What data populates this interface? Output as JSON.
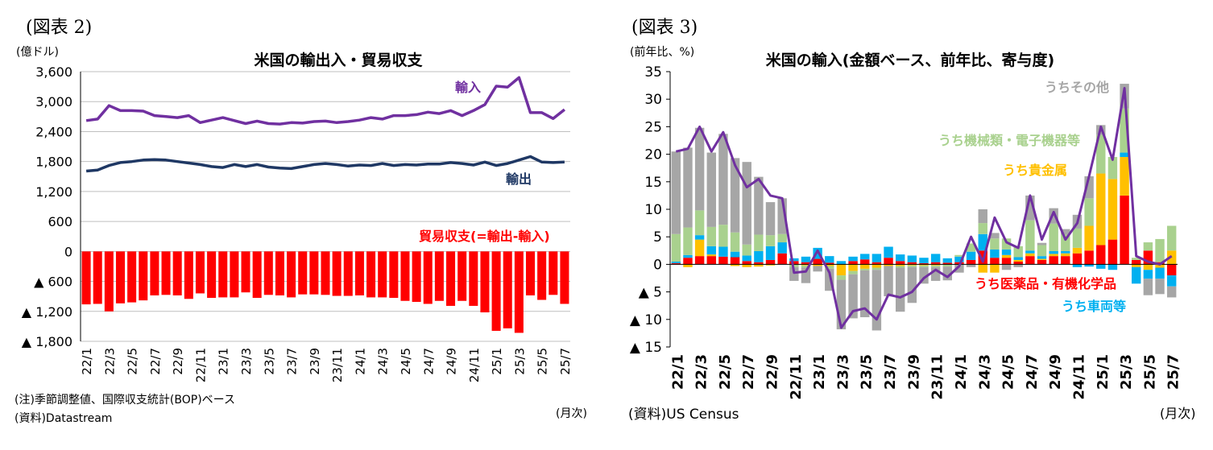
{
  "chart_data": [
    {
      "type": "bar+line",
      "figure_label": "(図表 2)",
      "title": "米国の輸出入・貿易収支",
      "ylabel": "(億ドル)",
      "xlabel_unit": "(月次)",
      "ylim": [
        -1800,
        3600
      ],
      "yticks": [
        {
          "value": 3600,
          "label": "3,600"
        },
        {
          "value": 3000,
          "label": "3,000"
        },
        {
          "value": 2400,
          "label": "2,400"
        },
        {
          "value": 1800,
          "label": "1,800"
        },
        {
          "value": 1200,
          "label": "1,200"
        },
        {
          "value": 600,
          "label": "600"
        },
        {
          "value": 0,
          "label": "0"
        },
        {
          "value": -600,
          "label": "▲ 600"
        },
        {
          "value": -1200,
          "label": "▲ 1,200"
        },
        {
          "value": -1800,
          "label": "▲ 1,800"
        }
      ],
      "grid": true,
      "categories": [
        "22/1",
        "22/2",
        "22/3",
        "22/4",
        "22/5",
        "22/6",
        "22/7",
        "22/8",
        "22/9",
        "22/10",
        "22/11",
        "22/12",
        "23/1",
        "23/2",
        "23/3",
        "23/4",
        "23/5",
        "23/6",
        "23/7",
        "23/8",
        "23/9",
        "23/10",
        "23/11",
        "23/12",
        "24/1",
        "24/2",
        "24/3",
        "24/4",
        "24/5",
        "24/6",
        "24/7",
        "24/8",
        "24/9",
        "24/10",
        "24/11",
        "24/12",
        "25/1",
        "25/2",
        "25/3",
        "25/4",
        "25/5",
        "25/6",
        "25/7"
      ],
      "tick_labels": [
        "22/1",
        "22/3",
        "22/5",
        "22/7",
        "22/9",
        "22/11",
        "23/1",
        "23/3",
        "23/5",
        "23/7",
        "23/9",
        "23/11",
        "24/1",
        "24/3",
        "24/5",
        "24/7",
        "24/9",
        "24/11",
        "25/1",
        "25/3",
        "25/5",
        "25/7"
      ],
      "series": [
        {
          "name": "輸入",
          "kind": "line",
          "color": "#7030a0",
          "values": [
            2620,
            2650,
            2920,
            2820,
            2820,
            2810,
            2720,
            2700,
            2680,
            2720,
            2580,
            2630,
            2680,
            2620,
            2560,
            2610,
            2560,
            2550,
            2580,
            2570,
            2600,
            2610,
            2580,
            2600,
            2630,
            2680,
            2650,
            2720,
            2720,
            2740,
            2790,
            2760,
            2820,
            2720,
            2820,
            2940,
            3310,
            3290,
            3480,
            2780,
            2780,
            2660,
            2840
          ]
        },
        {
          "name": "輸出",
          "kind": "line",
          "color": "#1f3864",
          "values": [
            1610,
            1630,
            1720,
            1780,
            1800,
            1830,
            1840,
            1830,
            1800,
            1770,
            1740,
            1700,
            1680,
            1740,
            1700,
            1740,
            1690,
            1670,
            1660,
            1700,
            1740,
            1760,
            1740,
            1710,
            1730,
            1720,
            1760,
            1720,
            1740,
            1730,
            1750,
            1750,
            1780,
            1760,
            1730,
            1790,
            1720,
            1760,
            1830,
            1900,
            1790,
            1780,
            1790
          ]
        },
        {
          "name": "貿易収支(=輸出-輸入)",
          "kind": "bar",
          "color": "#ff0000",
          "values": [
            -1060,
            -1050,
            -1200,
            -1040,
            -1020,
            -980,
            -880,
            -870,
            -880,
            -950,
            -840,
            -930,
            -920,
            -920,
            -820,
            -930,
            -870,
            -880,
            -920,
            -860,
            -860,
            -870,
            -890,
            -890,
            -880,
            -920,
            -920,
            -930,
            -990,
            -1010,
            -1050,
            -990,
            -1090,
            -990,
            -1090,
            -1220,
            -1590,
            -1540,
            -1630,
            -880,
            -970,
            -870,
            -1050
          ]
        }
      ],
      "notes": [
        "(注)季節調整値、国際収支統計(BOP)ベース",
        "(資料)Datastream"
      ]
    },
    {
      "type": "stacked-bar+line",
      "figure_label": "(図表 3)",
      "title": "米国の輸入(金額ベース、前年比、寄与度)",
      "ylabel": "(前年比、%)",
      "xlabel_unit": "(月次)",
      "ylim": [
        -15,
        35
      ],
      "yticks": [
        {
          "value": 35,
          "label": "35"
        },
        {
          "value": 30,
          "label": "30"
        },
        {
          "value": 25,
          "label": "25"
        },
        {
          "value": 20,
          "label": "20"
        },
        {
          "value": 15,
          "label": "15"
        },
        {
          "value": 10,
          "label": "10"
        },
        {
          "value": 5,
          "label": "5"
        },
        {
          "value": 0,
          "label": "0"
        },
        {
          "value": -5,
          "label": "▲ 5"
        },
        {
          "value": -10,
          "label": "▲ 10"
        },
        {
          "value": -15,
          "label": "▲ 15"
        }
      ],
      "grid": false,
      "categories": [
        "22/1",
        "22/2",
        "22/3",
        "22/4",
        "22/5",
        "22/6",
        "22/7",
        "22/8",
        "22/9",
        "22/10",
        "22/11",
        "22/12",
        "23/1",
        "23/2",
        "23/3",
        "23/4",
        "23/5",
        "23/6",
        "23/7",
        "23/8",
        "23/9",
        "23/10",
        "23/11",
        "23/12",
        "24/1",
        "24/2",
        "24/3",
        "24/4",
        "24/5",
        "24/6",
        "24/7",
        "24/8",
        "24/9",
        "24/10",
        "24/11",
        "24/12",
        "25/1",
        "25/2",
        "25/3",
        "25/4",
        "25/5",
        "25/6",
        "25/7"
      ],
      "tick_labels": [
        "22/1",
        "22/3",
        "22/5",
        "22/7",
        "22/9",
        "22/11",
        "23/1",
        "23/3",
        "23/5",
        "23/7",
        "23/9",
        "23/11",
        "24/1",
        "24/3",
        "24/5",
        "24/7",
        "24/9",
        "24/11",
        "25/1",
        "25/3",
        "25/5",
        "25/7"
      ],
      "series": [
        {
          "name": "うち医薬品・有機化学品",
          "kind": "bar",
          "color": "#ff0000",
          "values": [
            0.2,
            1.2,
            1.5,
            1.5,
            1.4,
            1.3,
            0.6,
            0.4,
            0.8,
            2.0,
            0.6,
            0.4,
            1.0,
            0.3,
            0.0,
            0.6,
            0.9,
            0.4,
            1.2,
            0.6,
            0.4,
            0.2,
            0.4,
            0.3,
            0.4,
            0.8,
            2.5,
            1.2,
            1.2,
            0.5,
            1.5,
            0.8,
            1.5,
            1.5,
            2.0,
            2.5,
            3.5,
            4.5,
            12.5,
            0.8,
            2.5,
            0.4,
            -2.0
          ]
        },
        {
          "name": "うち貴金属",
          "kind": "bar",
          "color": "#ffc000",
          "values": [
            0,
            -0.5,
            3.0,
            0.3,
            0,
            -0.3,
            -0.5,
            -0.4,
            -0.2,
            0,
            0,
            -0.2,
            -0.3,
            -0.3,
            -2.0,
            -1.2,
            -0.8,
            -0.6,
            -0.3,
            -0.3,
            -0.2,
            -0.2,
            -0.2,
            0,
            0,
            0,
            -1.5,
            -1.5,
            0.5,
            0.3,
            0.5,
            0.2,
            0.4,
            0.5,
            1.0,
            4.5,
            13.0,
            11.0,
            7.0,
            -0.5,
            -1.0,
            -0.6,
            2.5
          ]
        },
        {
          "name": "うち車両等",
          "kind": "bar",
          "color": "#00b0f0",
          "values": [
            0.3,
            0.5,
            0.8,
            1.5,
            1.8,
            1.0,
            1.0,
            2.0,
            2.5,
            2.0,
            0.5,
            1.0,
            2.0,
            1.2,
            0.6,
            0.8,
            1.0,
            1.5,
            2.0,
            1.2,
            1.2,
            1.0,
            1.5,
            0.8,
            1.0,
            1.5,
            3.0,
            1.5,
            1.0,
            0.5,
            0.5,
            0.5,
            0.5,
            0.4,
            -0.5,
            -0.4,
            -0.8,
            -1.0,
            0.8,
            -3.0,
            -1.6,
            -2.0,
            -2.0
          ]
        },
        {
          "name": "うち機械類・電子機器等",
          "kind": "bar",
          "color": "#a9d18e",
          "values": [
            5.0,
            5.0,
            4.5,
            3.5,
            4.0,
            3.5,
            2.0,
            3.0,
            2.0,
            1.5,
            -0.5,
            -0.4,
            0,
            -0.5,
            -0.8,
            -0.6,
            -0.3,
            -0.4,
            0,
            -0.3,
            -0.3,
            -0.3,
            -0.3,
            -0.4,
            0.3,
            1.5,
            2.0,
            2.0,
            2.0,
            2.0,
            5.5,
            2.0,
            5.0,
            3.0,
            3.5,
            5.0,
            7.0,
            4.0,
            8.0,
            0.4,
            1.5,
            4.2,
            4.5
          ]
        },
        {
          "name": "うちその他",
          "kind": "bar",
          "color": "#a6a6a6",
          "values": [
            15.0,
            14.5,
            15.0,
            13.5,
            16.5,
            13.5,
            15.0,
            10.5,
            6.0,
            6.5,
            -2.5,
            -2.8,
            -1.0,
            -4.0,
            -9.0,
            -8.0,
            -8.5,
            -11.0,
            -5.5,
            -8.0,
            -6.5,
            -3.0,
            -2.5,
            -2.5,
            -1.5,
            -0.5,
            2.5,
            1.0,
            -1.0,
            -0.5,
            4.5,
            0.4,
            2.8,
            1.0,
            2.5,
            4.0,
            1.8,
            0,
            4.5,
            0,
            -3.0,
            -2.8,
            -2.0
          ]
        },
        {
          "name": "",
          "kind": "line",
          "color": "#7030a0",
          "values": [
            20.5,
            21.0,
            25.0,
            20.5,
            24.0,
            18.0,
            14.0,
            15.5,
            12.5,
            12.0,
            -1.5,
            -1.3,
            2.5,
            -1.5,
            -11.5,
            -8.5,
            -8.0,
            -10.0,
            -5.5,
            -6.0,
            -5.0,
            -2.5,
            -1.0,
            -2.3,
            -0.3,
            5.0,
            0.5,
            8.5,
            4.0,
            3.0,
            12.5,
            4.5,
            9.5,
            4.5,
            7.5,
            16.0,
            25.0,
            19.0,
            32.0,
            1.5,
            0.5,
            0.0,
            1.5
          ]
        }
      ],
      "notes": [
        "(資料)US Census"
      ]
    }
  ]
}
